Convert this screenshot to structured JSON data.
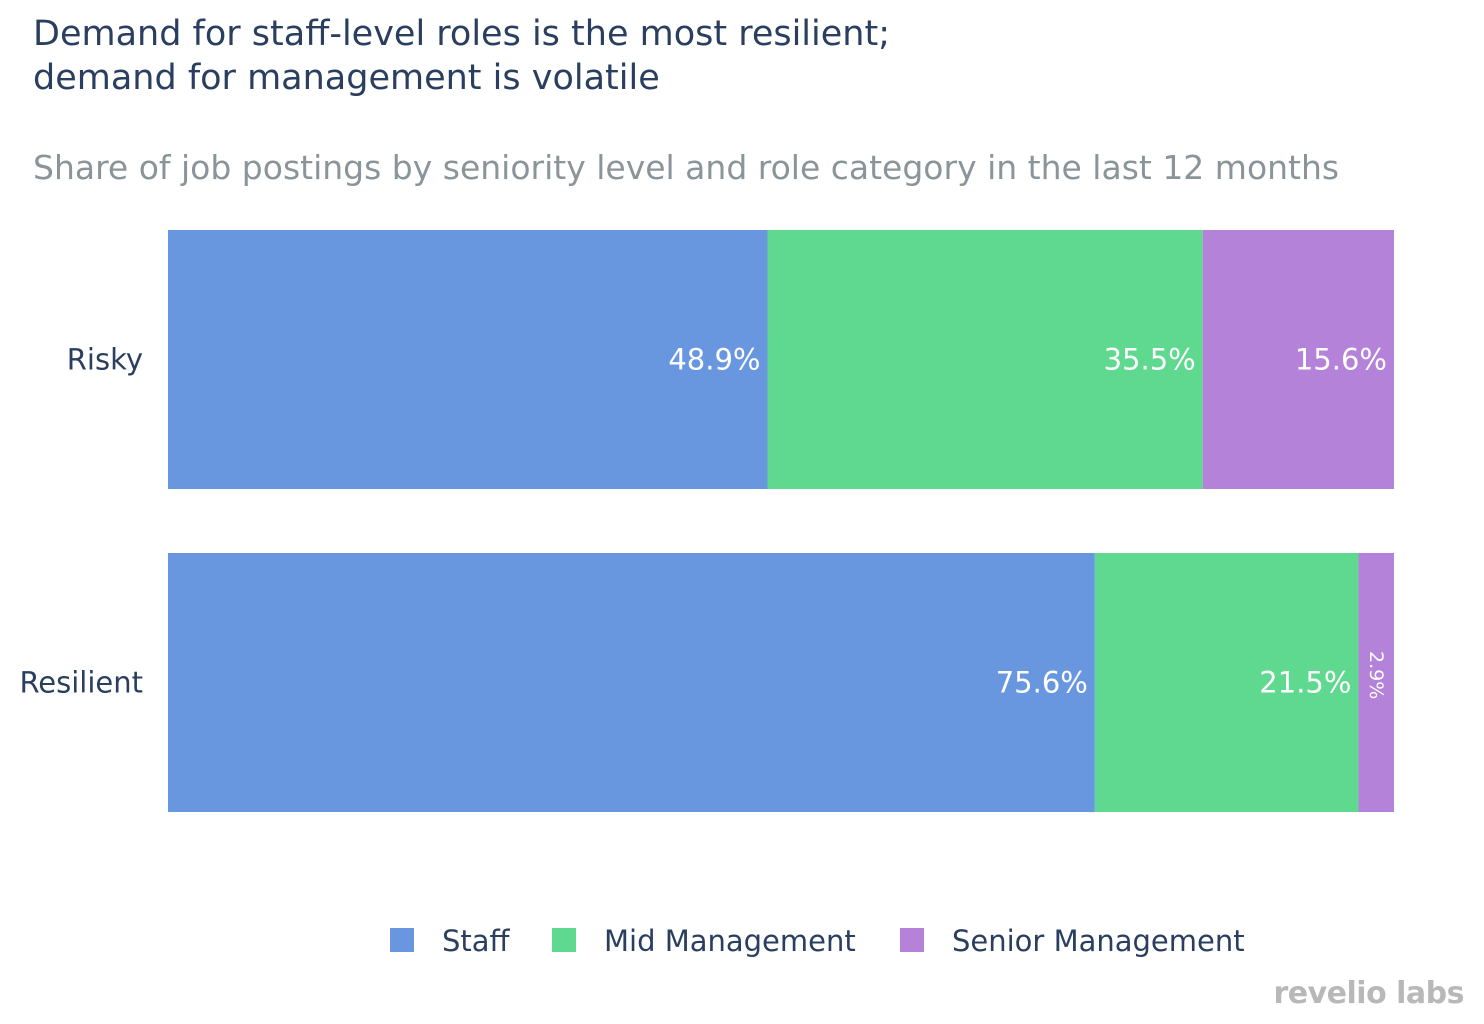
{
  "title_lines": [
    "Demand for staff-level roles is the most resilient;",
    "demand for management is volatile"
  ],
  "subtitle": "Share of job postings by seniority level and role category in the last 12 months",
  "logo": "revelio labs",
  "colors": {
    "Staff": "#6897e0",
    "Mid Management": "#5ed98f",
    "Senior Management": "#b482d8"
  },
  "chart_data": {
    "type": "bar",
    "orientation": "horizontal",
    "stacked": true,
    "categories": [
      "Risky",
      "Resilient"
    ],
    "series": [
      {
        "name": "Staff",
        "values": [
          48.9,
          75.6
        ],
        "labels": [
          "48.9%",
          "75.6%"
        ]
      },
      {
        "name": "Mid Management",
        "values": [
          35.5,
          21.5
        ],
        "labels": [
          "35.5%",
          "21.5%"
        ]
      },
      {
        "name": "Senior Management",
        "values": [
          15.6,
          2.9
        ],
        "labels": [
          "15.6%",
          "2.9%"
        ]
      }
    ],
    "xlim": [
      0,
      100
    ],
    "grid": false,
    "legend_position": "bottom-center"
  }
}
